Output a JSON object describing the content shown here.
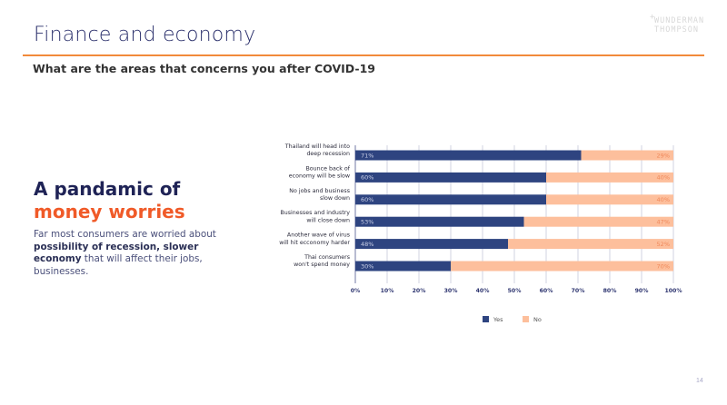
{
  "header": {
    "title": "Finance and economy",
    "subtitle": "What are the areas that concerns you after COVID-19",
    "logo_line1": "WUNDERMAN",
    "logo_line2": "THOMPSON",
    "logo_plus": "+"
  },
  "left_panel": {
    "headline_line1": "A pandamic of",
    "headline_line2": "money worries",
    "body_part1": "Far most consumers are worried about ",
    "body_bold1": "possibility of recession, slower economy",
    "body_part2": " that will affect their jobs, businesses."
  },
  "colors": {
    "yes": "#2e4480",
    "no": "#fdbf9c",
    "no_label": "#f0885a",
    "accent": "#f05a28",
    "grid": "#c5c8da"
  },
  "footer": {
    "page_number": "14"
  },
  "chart_data": {
    "type": "bar",
    "orientation": "horizontal",
    "stacked": true,
    "title": "What are the areas that concerns you after COVID-19",
    "categories": [
      [
        "Thailand will head into",
        "deep recession"
      ],
      [
        "Bounce back of",
        "economy will be slow"
      ],
      [
        "No jobs and business",
        "slow down"
      ],
      [
        "Businesses and industry",
        "will close down"
      ],
      [
        "Another wave of virus",
        "will hit ecconomy harder"
      ],
      [
        "Thai consumers",
        "won't spend money"
      ]
    ],
    "series": [
      {
        "name": "Yes",
        "values": [
          71,
          60,
          60,
          53,
          48,
          30
        ]
      },
      {
        "name": "No",
        "values": [
          29,
          40,
          40,
          47,
          52,
          70
        ]
      }
    ],
    "xlim": [
      0,
      100
    ],
    "x_ticks": [
      "0%",
      "10%",
      "20%",
      "30%",
      "40%",
      "50%",
      "60%",
      "70%",
      "80%",
      "90%",
      "100%"
    ],
    "grid": true,
    "legend": {
      "position": "bottom",
      "entries": [
        "Yes",
        "No"
      ]
    },
    "xlabel": "",
    "ylabel": ""
  }
}
